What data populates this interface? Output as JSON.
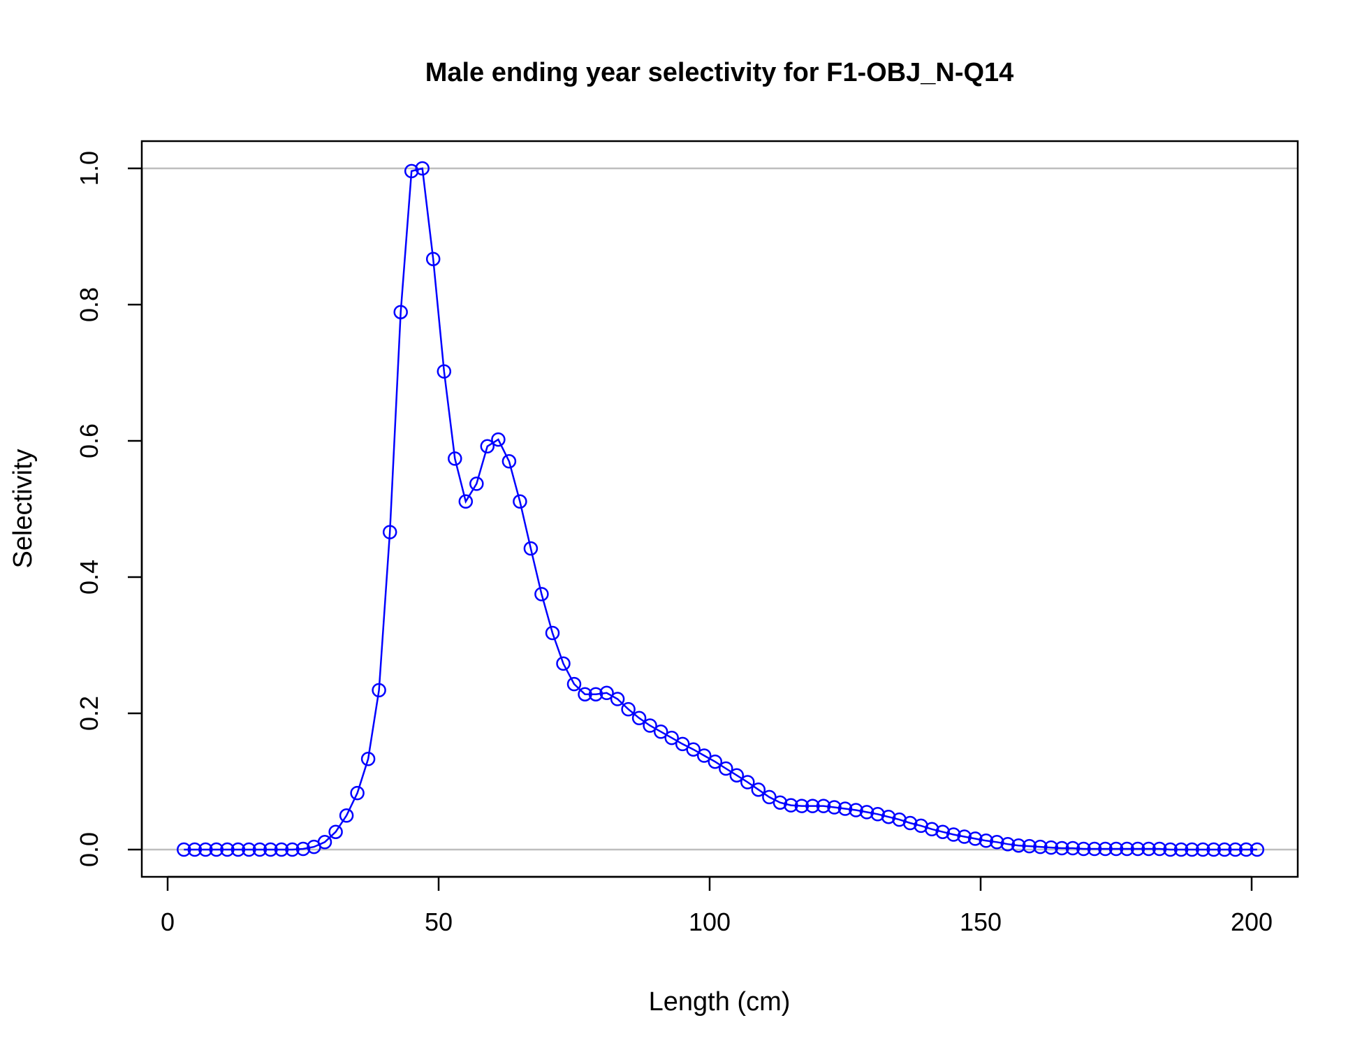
{
  "chart_data": {
    "type": "line",
    "title": "Male ending year selectivity for F1-OBJ_N-Q14",
    "xlabel": "Length (cm)",
    "ylabel": "Selectivity",
    "xlim": [
      0,
      205
    ],
    "ylim": [
      0,
      1.0
    ],
    "xticks": [
      0,
      50,
      100,
      150,
      200
    ],
    "xtick_labels": [
      "0",
      "50",
      "100",
      "150",
      "200"
    ],
    "yticks": [
      0,
      0.2,
      0.4,
      0.6,
      0.8,
      1.0
    ],
    "ytick_labels": [
      "0.0",
      "0.2",
      "0.4",
      "0.6",
      "0.8",
      "1.0"
    ],
    "reference_lines_y": [
      0,
      1
    ],
    "grid": false,
    "colors": {
      "series": "#0000ff",
      "reference": "#bebebe",
      "axis": "#000000"
    },
    "series": [
      {
        "marker": "open-circle",
        "x": [
          3,
          5,
          7,
          9,
          11,
          13,
          15,
          17,
          19,
          21,
          23,
          25,
          27,
          29,
          31,
          33,
          35,
          37,
          39,
          41,
          43,
          45,
          47,
          49,
          51,
          53,
          55,
          57,
          59,
          61,
          63,
          65,
          67,
          69,
          71,
          73,
          75,
          77,
          79,
          81,
          83,
          85,
          87,
          89,
          91,
          93,
          95,
          97,
          99,
          101,
          103,
          105,
          107,
          109,
          111,
          113,
          115,
          117,
          119,
          121,
          123,
          125,
          127,
          129,
          131,
          133,
          135,
          137,
          139,
          141,
          143,
          145,
          147,
          149,
          151,
          153,
          155,
          157,
          159,
          161,
          163,
          165,
          167,
          169,
          171,
          173,
          175,
          177,
          179,
          181,
          183,
          185,
          187,
          189,
          191,
          193,
          195,
          197,
          199,
          201
        ],
        "y": [
          0,
          0,
          0,
          0,
          0,
          0,
          0,
          0,
          0,
          0,
          0,
          0.001,
          0.004,
          0.011,
          0.026,
          0.05,
          0.083,
          0.133,
          0.234,
          0.466,
          0.789,
          0.996,
          1.0,
          0.867,
          0.702,
          0.574,
          0.511,
          0.537,
          0.592,
          0.602,
          0.57,
          0.511,
          0.442,
          0.375,
          0.318,
          0.273,
          0.243,
          0.228,
          0.228,
          0.23,
          0.221,
          0.206,
          0.193,
          0.182,
          0.173,
          0.164,
          0.155,
          0.147,
          0.138,
          0.129,
          0.119,
          0.109,
          0.099,
          0.088,
          0.077,
          0.069,
          0.065,
          0.064,
          0.064,
          0.064,
          0.062,
          0.06,
          0.058,
          0.055,
          0.052,
          0.048,
          0.044,
          0.039,
          0.035,
          0.03,
          0.026,
          0.022,
          0.019,
          0.016,
          0.013,
          0.011,
          0.008,
          0.006,
          0.005,
          0.004,
          0.003,
          0.002,
          0.002,
          0.001,
          0.001,
          0.001,
          0.001,
          0.001,
          0.001,
          0.001,
          0.001,
          0,
          0,
          0,
          0,
          0,
          0,
          0,
          0,
          0
        ]
      }
    ]
  }
}
